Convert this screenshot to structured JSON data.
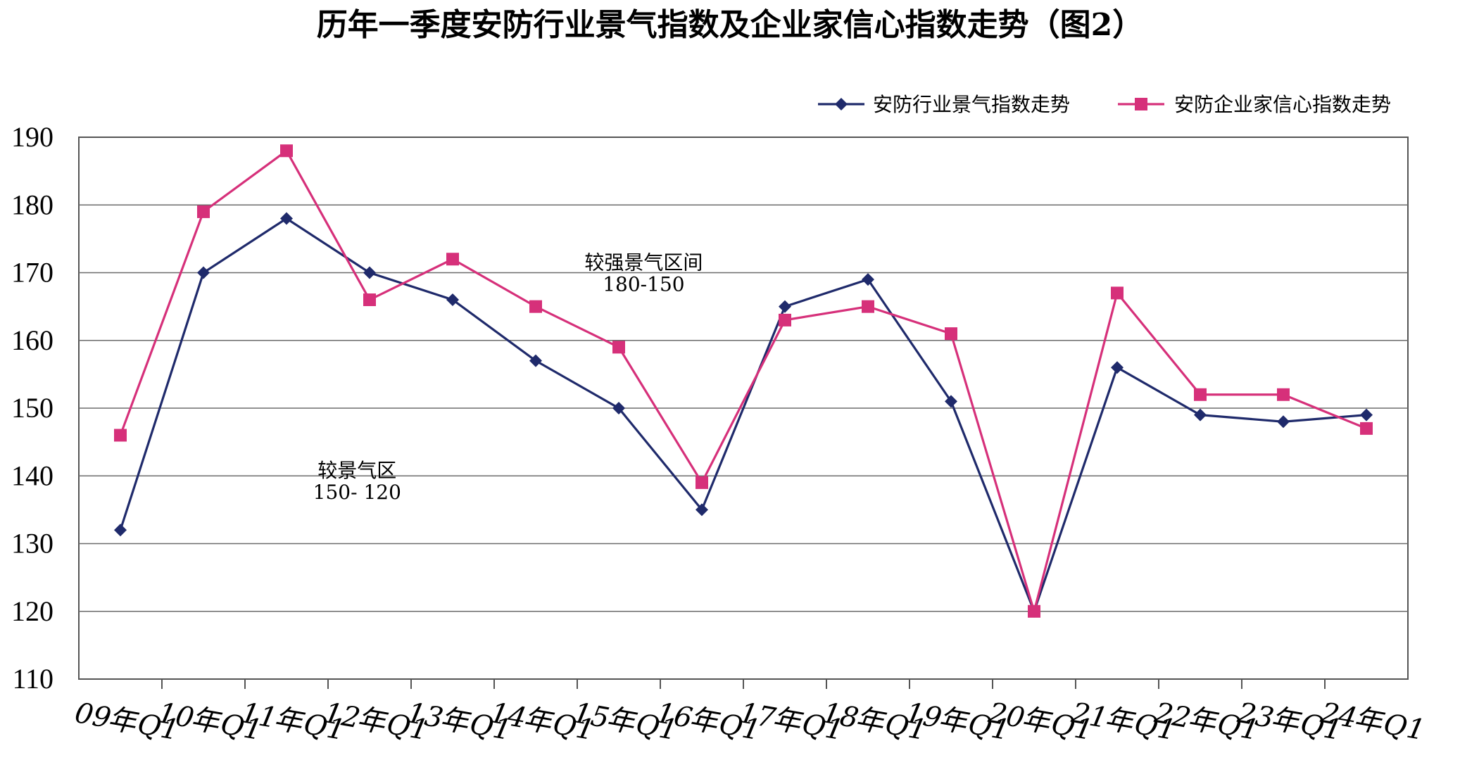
{
  "chart_data": {
    "type": "line",
    "title": "历年一季度安防行业景气指数及企业家信心指数走势（图2）",
    "categories": [
      "09年Q1",
      "10年Q1",
      "11年Q1",
      "12年Q1",
      "13年Q1",
      "14年Q1",
      "15年Q1",
      "16年Q1",
      "17年Q1",
      "18年Q1",
      "19年Q1",
      "20年Q1",
      "21年Q1",
      "22年Q1",
      "23年Q1",
      "24年Q1"
    ],
    "series": [
      {
        "name": "安防行业景气指数走势",
        "color": "#1f2a6b",
        "marker": "diamond",
        "values": [
          132,
          170,
          178,
          170,
          166,
          157,
          150,
          135,
          165,
          169,
          151,
          120,
          156,
          149,
          148,
          149
        ]
      },
      {
        "name": "安防企业家信心指数走势",
        "color": "#d6307a",
        "marker": "square",
        "values": [
          146,
          179,
          188,
          166,
          172,
          165,
          159,
          139,
          163,
          165,
          161,
          120,
          167,
          152,
          152,
          147
        ]
      }
    ],
    "ylim": [
      110,
      190
    ],
    "yticks": [
      110,
      120,
      130,
      140,
      150,
      160,
      170,
      180,
      190
    ],
    "ytick_labels": [
      "110",
      "120",
      "130",
      "140",
      "150",
      "160",
      "170",
      "180",
      "190"
    ],
    "grid": true,
    "legend": "top-right",
    "annotations": [
      {
        "lines": [
          "较强景气区间",
          "180-150"
        ],
        "x_category": 6.8,
        "y": 170.5
      },
      {
        "lines": [
          "较景气区",
          "150- 120"
        ],
        "x_category": 3.35,
        "y": 139.8
      }
    ]
  }
}
